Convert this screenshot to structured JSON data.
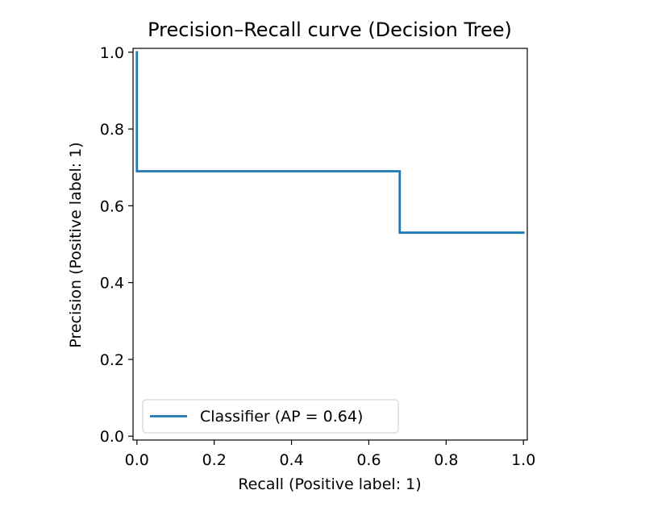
{
  "chart_data": {
    "type": "line",
    "title": "Precision–Recall curve (Decision Tree)",
    "xlabel": "Recall (Positive label: 1)",
    "ylabel": "Precision (Positive label: 1)",
    "xlim": [
      -0.01,
      1.01
    ],
    "ylim": [
      -0.01,
      1.01
    ],
    "x_ticks": [
      0.0,
      0.2,
      0.4,
      0.6,
      0.8,
      1.0
    ],
    "y_ticks": [
      0.0,
      0.2,
      0.4,
      0.6,
      0.8,
      1.0
    ],
    "x_tick_labels": [
      "0.0",
      "0.2",
      "0.4",
      "0.6",
      "0.8",
      "1.0"
    ],
    "y_tick_labels": [
      "0.0",
      "0.2",
      "0.4",
      "0.6",
      "0.8",
      "1.0"
    ],
    "grid": false,
    "legend_position": "lower-left",
    "series": [
      {
        "name": "Classifier (AP = 0.64)",
        "color": "#1f77b4",
        "drawstyle": "steps-post",
        "x": [
          0.0,
          0.0,
          0.0,
          0.68,
          0.68,
          1.0
        ],
        "y": [
          1.0,
          0.69,
          0.69,
          0.69,
          0.53,
          0.53
        ]
      }
    ]
  }
}
